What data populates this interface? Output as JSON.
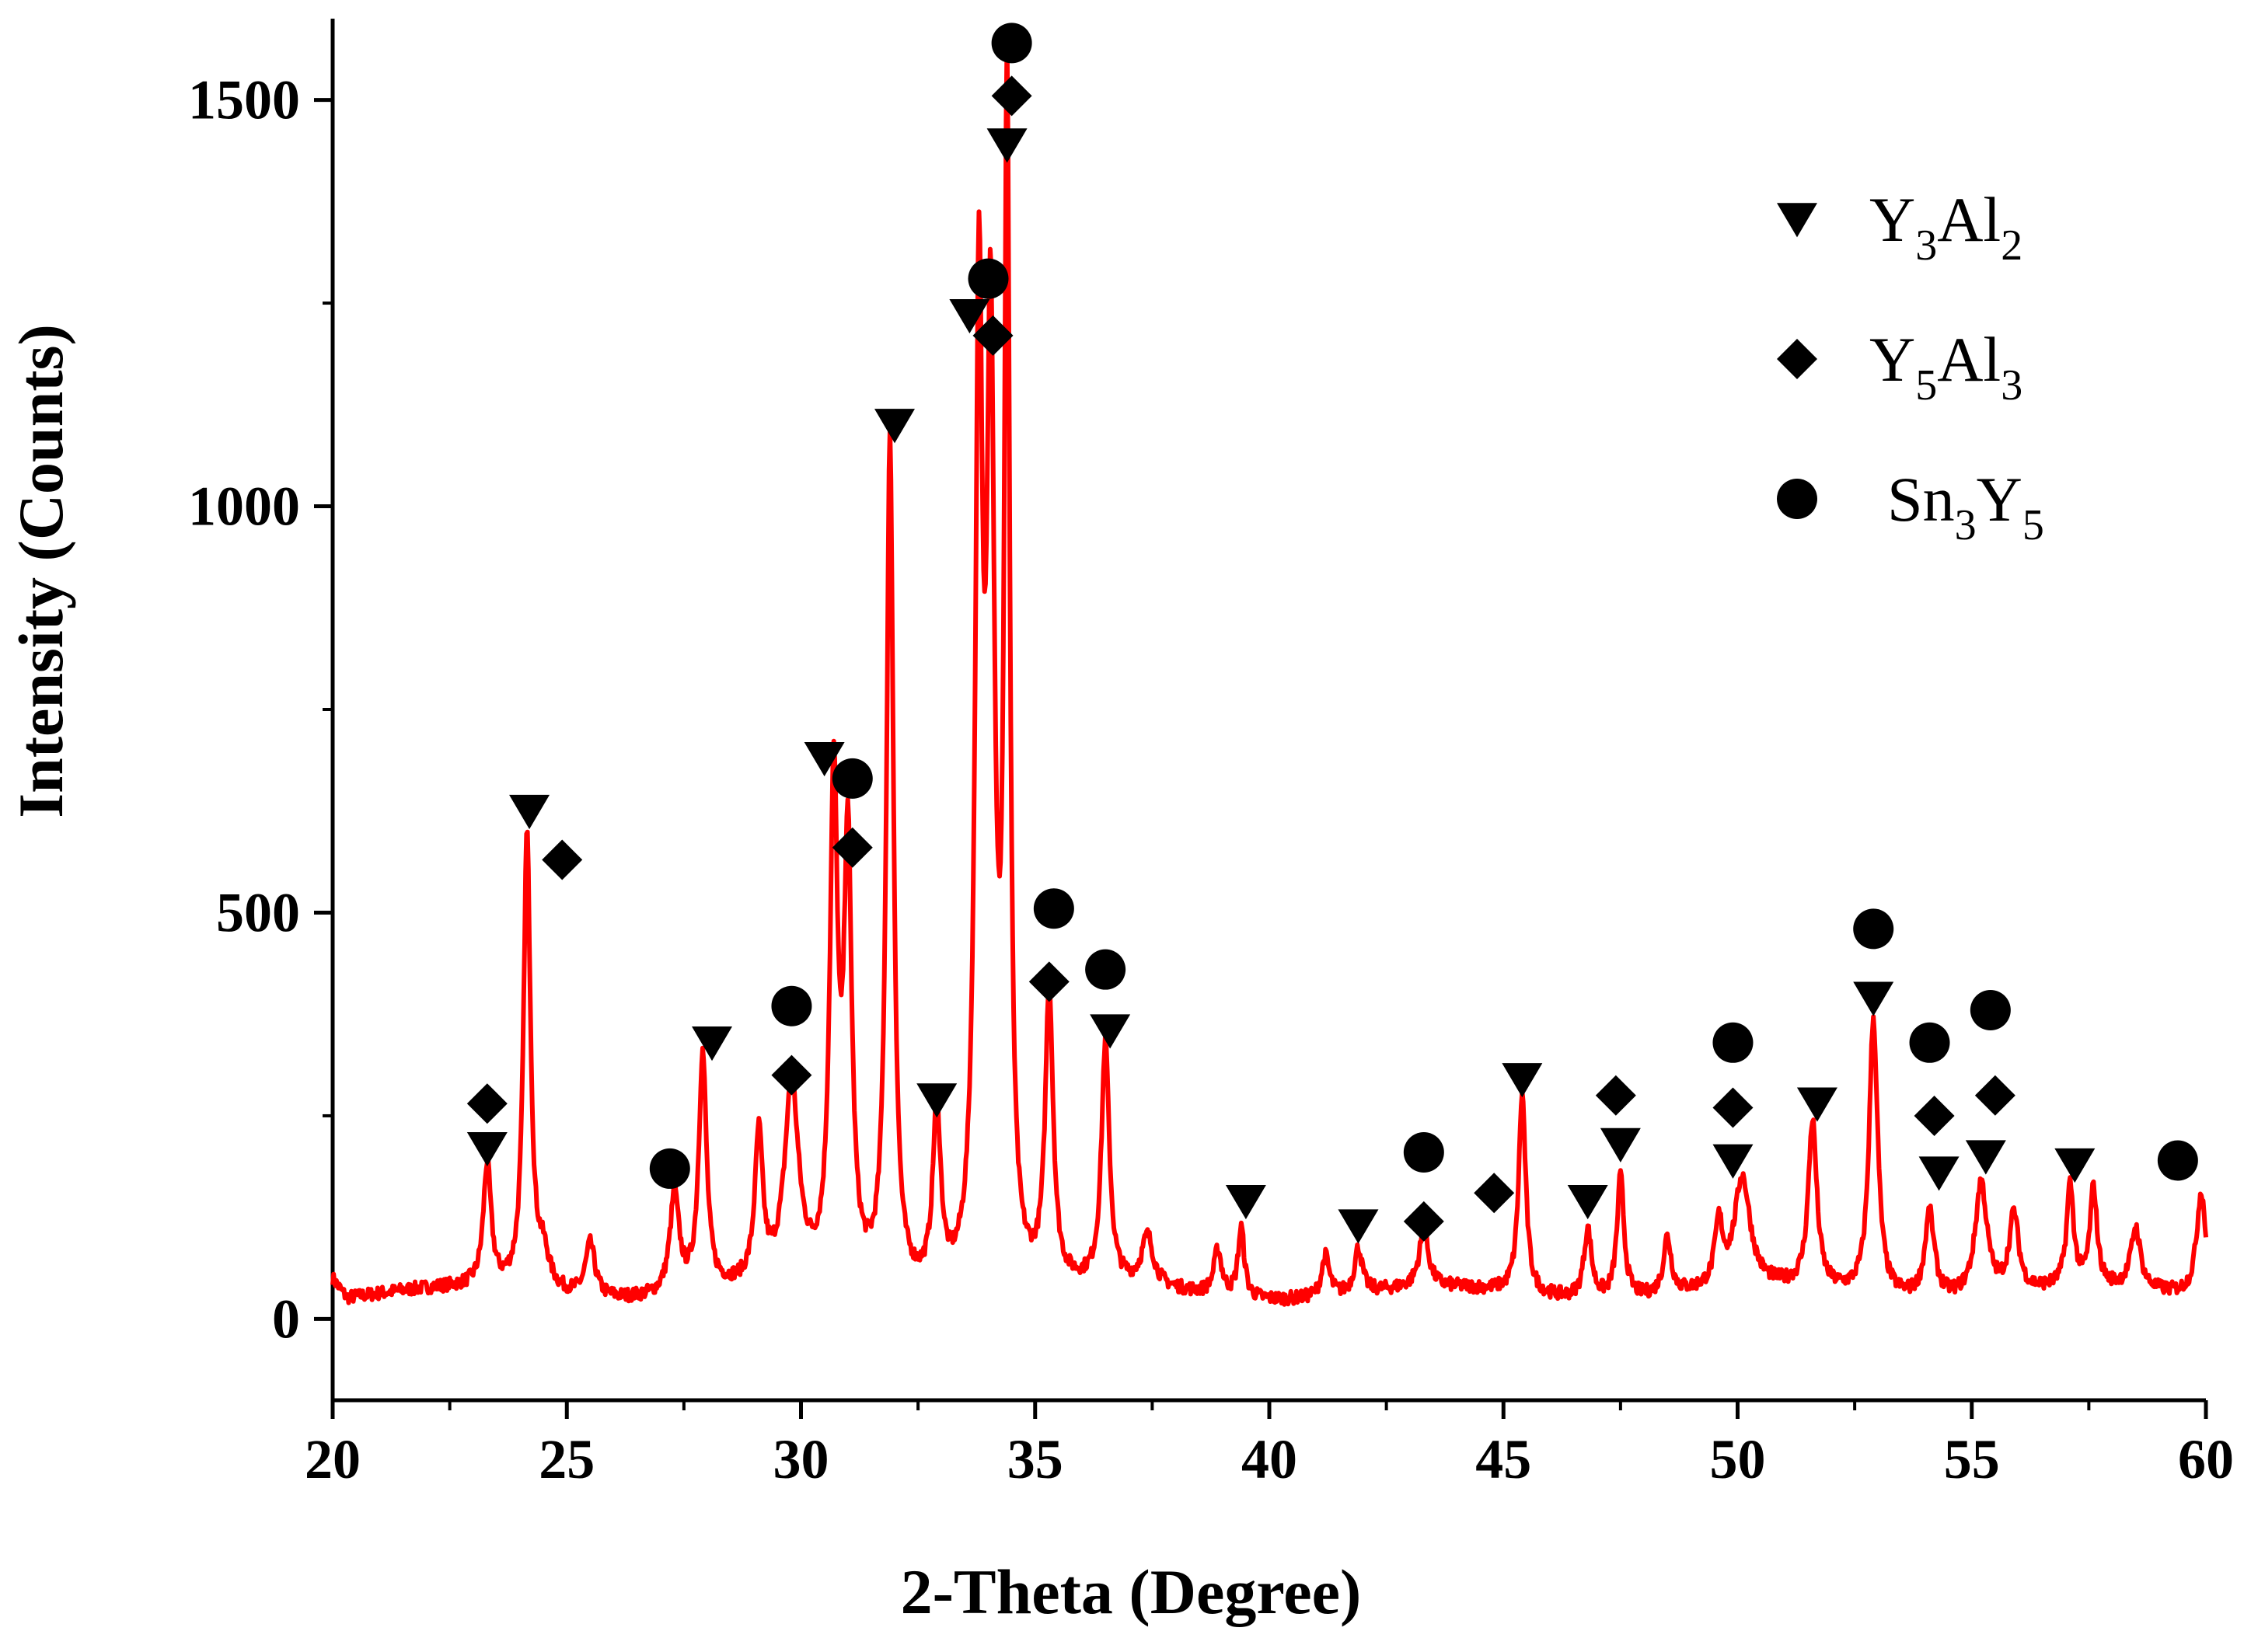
{
  "chart_data": {
    "type": "line",
    "title": "",
    "xlabel": "2-Theta (Degree)",
    "ylabel": "Intensity (Counts)",
    "xlim": [
      20,
      60
    ],
    "ylim": [
      -100,
      1600
    ],
    "x_ticks": [
      20,
      25,
      30,
      35,
      40,
      45,
      50,
      55,
      60
    ],
    "y_ticks": [
      0,
      500,
      1000,
      1500
    ],
    "grid": false,
    "line_color": "#ff0000",
    "baseline": 30,
    "peaks": [
      {
        "x": 23.3,
        "y": 150,
        "w": 0.1
      },
      {
        "x": 24.15,
        "y": 560,
        "w": 0.09
      },
      {
        "x": 24.5,
        "y": 40,
        "w": 0.15
      },
      {
        "x": 25.5,
        "y": 65,
        "w": 0.12
      },
      {
        "x": 27.3,
        "y": 120,
        "w": 0.12
      },
      {
        "x": 27.9,
        "y": 290,
        "w": 0.1
      },
      {
        "x": 29.1,
        "y": 180,
        "w": 0.1
      },
      {
        "x": 29.8,
        "y": 240,
        "w": 0.18
      },
      {
        "x": 30.7,
        "y": 600,
        "w": 0.1
      },
      {
        "x": 31.0,
        "y": 520,
        "w": 0.1
      },
      {
        "x": 31.9,
        "y": 1040,
        "w": 0.09
      },
      {
        "x": 32.9,
        "y": 220,
        "w": 0.1
      },
      {
        "x": 33.8,
        "y": 1160,
        "w": 0.09
      },
      {
        "x": 34.05,
        "y": 1100,
        "w": 0.1
      },
      {
        "x": 34.4,
        "y": 1430,
        "w": 0.07
      },
      {
        "x": 35.3,
        "y": 360,
        "w": 0.1
      },
      {
        "x": 36.5,
        "y": 295,
        "w": 0.1
      },
      {
        "x": 37.4,
        "y": 60,
        "w": 0.15
      },
      {
        "x": 38.9,
        "y": 55,
        "w": 0.1
      },
      {
        "x": 39.4,
        "y": 85,
        "w": 0.08
      },
      {
        "x": 41.2,
        "y": 50,
        "w": 0.1
      },
      {
        "x": 41.9,
        "y": 55,
        "w": 0.1
      },
      {
        "x": 43.3,
        "y": 70,
        "w": 0.12
      },
      {
        "x": 45.4,
        "y": 245,
        "w": 0.09
      },
      {
        "x": 46.8,
        "y": 85,
        "w": 0.1
      },
      {
        "x": 47.5,
        "y": 150,
        "w": 0.09
      },
      {
        "x": 48.5,
        "y": 70,
        "w": 0.1
      },
      {
        "x": 49.6,
        "y": 75,
        "w": 0.1
      },
      {
        "x": 50.1,
        "y": 135,
        "w": 0.2
      },
      {
        "x": 51.6,
        "y": 205,
        "w": 0.11
      },
      {
        "x": 52.9,
        "y": 340,
        "w": 0.11
      },
      {
        "x": 54.1,
        "y": 105,
        "w": 0.12
      },
      {
        "x": 55.2,
        "y": 140,
        "w": 0.15
      },
      {
        "x": 55.9,
        "y": 95,
        "w": 0.12
      },
      {
        "x": 57.1,
        "y": 125,
        "w": 0.09
      },
      {
        "x": 57.6,
        "y": 120,
        "w": 0.09
      },
      {
        "x": 58.5,
        "y": 75,
        "w": 0.12
      },
      {
        "x": 59.9,
        "y": 130,
        "w": 0.12
      }
    ],
    "series_markers": [
      {
        "name": "Y3Al2",
        "symbol": "triangle-down",
        "points": [
          [
            23.3,
            210
          ],
          [
            24.2,
            625
          ],
          [
            28.1,
            340
          ],
          [
            30.5,
            690
          ],
          [
            32.0,
            1100
          ],
          [
            32.9,
            270
          ],
          [
            33.6,
            1235
          ],
          [
            34.4,
            1445
          ],
          [
            36.6,
            355
          ],
          [
            39.5,
            145
          ],
          [
            41.9,
            115
          ],
          [
            45.4,
            295
          ],
          [
            46.8,
            145
          ],
          [
            47.5,
            215
          ],
          [
            49.9,
            195
          ],
          [
            51.7,
            265
          ],
          [
            52.9,
            395
          ],
          [
            54.3,
            180
          ],
          [
            55.3,
            200
          ],
          [
            57.2,
            190
          ]
        ]
      },
      {
        "name": "Y5Al3",
        "symbol": "diamond",
        "points": [
          [
            23.3,
            265
          ],
          [
            24.9,
            565
          ],
          [
            29.8,
            300
          ],
          [
            31.1,
            580
          ],
          [
            34.1,
            1210
          ],
          [
            34.5,
            1505
          ],
          [
            35.3,
            415
          ],
          [
            43.3,
            120
          ],
          [
            44.8,
            155
          ],
          [
            47.4,
            275
          ],
          [
            49.9,
            260
          ],
          [
            54.2,
            250
          ],
          [
            55.5,
            275
          ]
        ]
      },
      {
        "name": "Sn3Y5",
        "symbol": "circle",
        "points": [
          [
            27.2,
            185
          ],
          [
            29.8,
            385
          ],
          [
            31.1,
            665
          ],
          [
            34.0,
            1280
          ],
          [
            34.5,
            1570
          ],
          [
            35.4,
            505
          ],
          [
            36.5,
            430
          ],
          [
            43.3,
            205
          ],
          [
            49.9,
            340
          ],
          [
            52.9,
            480
          ],
          [
            54.1,
            340
          ],
          [
            55.4,
            380
          ],
          [
            59.4,
            195
          ]
        ]
      }
    ],
    "legend": {
      "placement": "top-right",
      "entries": [
        {
          "symbol": "triangle-down",
          "base1": "Y",
          "sub1": "3",
          "base2": "Al",
          "sub2": "2"
        },
        {
          "symbol": "diamond",
          "base1": "Y",
          "sub1": "5",
          "base2": "Al",
          "sub2": "3"
        },
        {
          "symbol": "circle",
          "base1": "Sn",
          "sub1": "3",
          "base2": "Y",
          "sub2": "5"
        }
      ]
    }
  }
}
